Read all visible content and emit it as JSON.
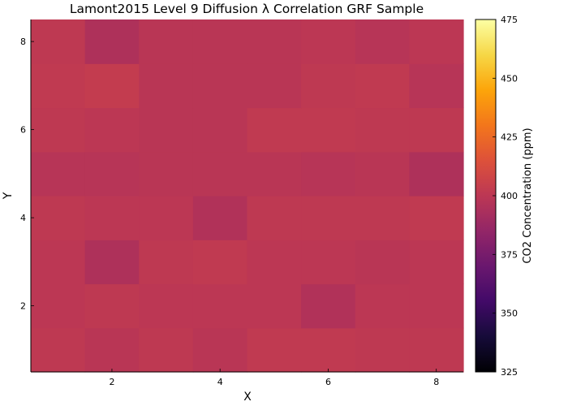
{
  "chart_data": {
    "type": "heatmap",
    "title": "Lamont2015 Level 9 Diffusion λ Correlation GRF Sample",
    "xlabel": "X",
    "ylabel": "Y",
    "colorbar_label": "CO2 Concentration (ppm)",
    "colormap": "inferno",
    "clim": [
      325,
      475
    ],
    "x": [
      1,
      2,
      3,
      4,
      5,
      6,
      7,
      8
    ],
    "y": [
      1,
      2,
      3,
      4,
      5,
      6,
      7,
      8
    ],
    "xlim": [
      0.5,
      8.5
    ],
    "ylim": [
      0.5,
      8.5
    ],
    "xticks": [
      "2",
      "4",
      "6",
      "8"
    ],
    "yticks": [
      "2",
      "4",
      "6",
      "8"
    ],
    "colorbar_ticks": [
      "325",
      "350",
      "375",
      "400",
      "425",
      "450",
      "475"
    ],
    "grid": false,
    "values": [
      [
        401,
        399,
        401,
        399,
        402,
        402,
        401,
        401
      ],
      [
        400,
        401,
        400,
        400,
        400,
        396,
        400,
        400
      ],
      [
        400,
        395,
        401,
        402,
        400,
        400,
        399,
        400
      ],
      [
        401,
        400,
        400,
        396,
        401,
        401,
        401,
        402
      ],
      [
        398,
        398,
        399,
        399,
        399,
        398,
        399,
        395
      ],
      [
        401,
        400,
        399,
        399,
        402,
        402,
        401,
        401
      ],
      [
        402,
        403,
        399,
        399,
        399,
        401,
        402,
        398
      ],
      [
        401,
        395,
        399,
        399,
        399,
        400,
        398,
        400
      ]
    ]
  }
}
